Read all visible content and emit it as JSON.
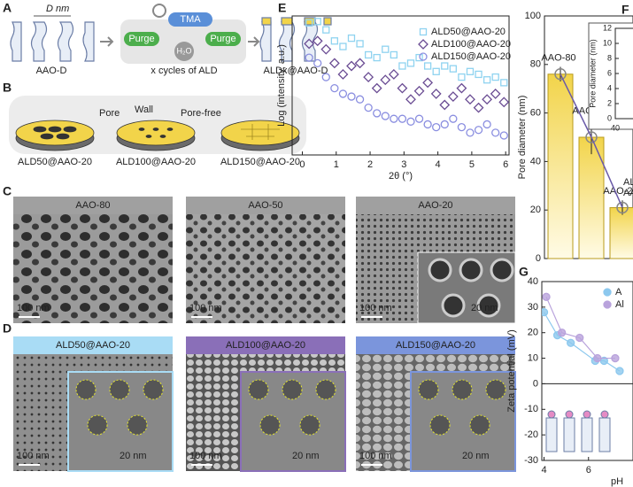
{
  "panels": {
    "A": {
      "label": "A",
      "d_nm": "D nm",
      "aao": "AAO-D",
      "tma": "TMA",
      "purge_left": "Purge",
      "h2o": "H₂O",
      "purge_right": "Purge",
      "cycles": "x cycles of ALD",
      "result": "ALDx@AAO-D"
    },
    "B": {
      "label": "B",
      "pore": "Pore",
      "wall": "Wall",
      "pore_free": "Pore-free",
      "samples": [
        "ALD50@AAO-20",
        "ALD100@AAO-20",
        "ALD150@AAO-20"
      ]
    },
    "C": {
      "label": "C",
      "images": [
        {
          "title": "AAO-80",
          "scale": "100 nm"
        },
        {
          "title": "AAO-50",
          "scale": "100 nm"
        },
        {
          "title": "AAO-20",
          "scale": "100 nm",
          "inset_scale": "20 nm"
        }
      ]
    },
    "D": {
      "label": "D",
      "images": [
        {
          "title": "ALD50@AAO-20",
          "scale": "100 nm",
          "inset_scale": "20 nm"
        },
        {
          "title": "ALD100@AAO-20",
          "scale": "100 nm",
          "inset_scale": "20 nm"
        },
        {
          "title": "ALD150@AAO-20",
          "scale": "100 nm",
          "inset_scale": "20 nm"
        }
      ]
    },
    "E": {
      "label": "E"
    },
    "F": {
      "label": "F"
    },
    "G": {
      "label": "G"
    }
  },
  "chart_data": [
    {
      "type": "scatter",
      "xlabel": "2θ (°)",
      "ylabel": "Log (intensity, a.u.)",
      "xlim": [
        -0.3,
        6.1
      ],
      "xticks": [
        0,
        1,
        2,
        3,
        4,
        5,
        6
      ],
      "ylim": [
        0,
        100
      ],
      "x": [
        0.2,
        0.45,
        0.7,
        0.95,
        1.2,
        1.45,
        1.7,
        1.95,
        2.2,
        2.45,
        2.7,
        2.95,
        3.2,
        3.45,
        3.7,
        3.95,
        4.2,
        4.45,
        4.7,
        4.95,
        5.2,
        5.45,
        5.7,
        5.95
      ],
      "series": [
        {
          "name": "ALD50@AAO-20",
          "color": "#8fd3f0",
          "marker": "square",
          "values": [
            95,
            96,
            90,
            82,
            78,
            84,
            80,
            72,
            70,
            76,
            72,
            64,
            66,
            70,
            64,
            60,
            64,
            62,
            56,
            60,
            58,
            54,
            56,
            52
          ]
        },
        {
          "name": "ALD100@AAO-20",
          "color": "#6a4c93",
          "marker": "diamond",
          "values": [
            80,
            82,
            76,
            66,
            58,
            64,
            66,
            56,
            48,
            54,
            58,
            48,
            40,
            46,
            52,
            44,
            36,
            42,
            48,
            40,
            34,
            40,
            44,
            38
          ]
        },
        {
          "name": "ALD150@AAO-20",
          "color": "#8a8ee0",
          "marker": "circle",
          "values": [
            70,
            66,
            56,
            48,
            44,
            42,
            40,
            34,
            30,
            28,
            26,
            26,
            24,
            26,
            22,
            20,
            22,
            26,
            20,
            16,
            18,
            22,
            16,
            14
          ]
        }
      ]
    },
    {
      "type": "bar",
      "ylabel": "Pore diameter (nm)",
      "ylim": [
        0,
        100
      ],
      "yticks": [
        0,
        20,
        40,
        60,
        80,
        100
      ],
      "categories": [
        "AAO-80",
        "AAO-50",
        "AAO-20"
      ],
      "values": [
        76,
        50,
        21
      ],
      "errors": [
        3,
        7,
        3
      ],
      "color": "#f2d44a",
      "line_color": "#6a5aa8",
      "annotations": [
        "AL",
        "AA"
      ]
    },
    {
      "type": "inset",
      "ylabel": "Pore diameter (nm)",
      "ylim": [
        0,
        12
      ],
      "yticks": [
        0,
        2,
        4,
        6,
        8,
        10,
        12
      ],
      "xlim": [
        40,
        80
      ],
      "xticks": [
        40
      ]
    },
    {
      "type": "scatter",
      "xlabel": "pH",
      "ylabel": "Zeta potential (mV)",
      "xlim": [
        3.9,
        8
      ],
      "xticks": [
        4,
        6
      ],
      "ylim": [
        -30,
        40
      ],
      "yticks": [
        -30,
        -20,
        -10,
        0,
        10,
        20,
        30,
        40
      ],
      "series": [
        {
          "name": "A",
          "color": "#8cc8ee",
          "marker": "circle",
          "x": [
            4.0,
            4.6,
            5.2,
            6.3,
            6.7,
            7.4
          ],
          "values": [
            28,
            19,
            16,
            9,
            9,
            5
          ]
        },
        {
          "name": "Al",
          "color": "#b9a3dc",
          "marker": "circle",
          "x": [
            4.1,
            4.8,
            5.6,
            6.4,
            7.2
          ],
          "values": [
            34,
            20,
            18,
            10,
            10
          ]
        }
      ]
    }
  ]
}
